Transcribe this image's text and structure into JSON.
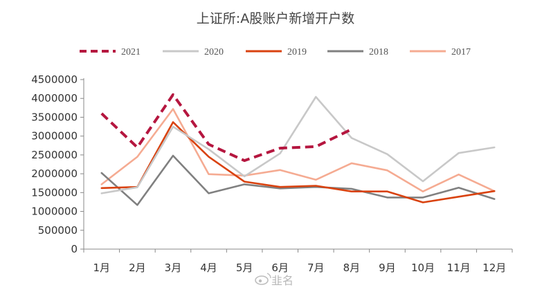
{
  "chart_data": {
    "type": "line",
    "title": "上证所:A股账户新增开户数",
    "categories": [
      "1月",
      "2月",
      "3月",
      "4月",
      "5月",
      "6月",
      "7月",
      "8月",
      "9月",
      "10月",
      "11月",
      "12月"
    ],
    "yticks": [
      "0",
      "500000",
      "1000000",
      "1500000",
      "2000000",
      "2500000",
      "3000000",
      "3500000",
      "4000000",
      "4500000"
    ],
    "ylim": [
      0,
      4500000
    ],
    "series": [
      {
        "name": "2021",
        "color": "#b5163f",
        "dash": true,
        "values": [
          3600000,
          2700000,
          4100000,
          2780000,
          2350000,
          2680000,
          2720000,
          3180000,
          null,
          null,
          null,
          null
        ]
      },
      {
        "name": "2020",
        "color": "#c8c8c8",
        "dash": false,
        "values": [
          1480000,
          1640000,
          3250000,
          2650000,
          1930000,
          2540000,
          4040000,
          2950000,
          2520000,
          1800000,
          2550000,
          2700000
        ]
      },
      {
        "name": "2019",
        "color": "#d9420f",
        "dash": false,
        "values": [
          1620000,
          1650000,
          3370000,
          2450000,
          1790000,
          1650000,
          1680000,
          1530000,
          1530000,
          1240000,
          1390000,
          1540000
        ]
      },
      {
        "name": "2018",
        "color": "#808080",
        "dash": false,
        "values": [
          2020000,
          1170000,
          2480000,
          1480000,
          1720000,
          1610000,
          1650000,
          1600000,
          1370000,
          1370000,
          1630000,
          1330000
        ]
      },
      {
        "name": "2017",
        "color": "#f5ab92",
        "dash": false,
        "values": [
          1720000,
          2450000,
          3720000,
          1990000,
          1950000,
          2100000,
          1840000,
          2280000,
          2090000,
          1530000,
          1980000,
          1540000
        ]
      }
    ]
  },
  "watermark": "韭名"
}
